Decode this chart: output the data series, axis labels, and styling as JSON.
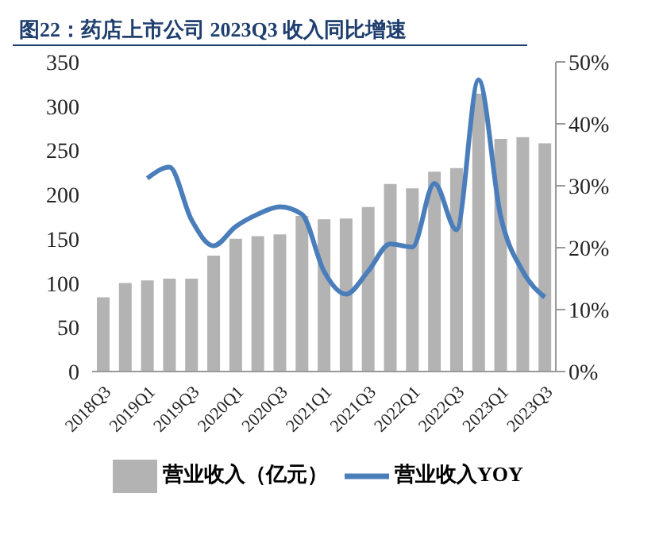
{
  "chart_data": {
    "type": "bar",
    "title": "图22：药店上市公司 2023Q3 收入同比增速",
    "categories": [
      "2018Q3",
      null,
      "2019Q1",
      null,
      "2019Q3",
      null,
      "2020Q1",
      null,
      "2020Q3",
      null,
      "2021Q1",
      null,
      "2021Q3",
      null,
      "2022Q1",
      null,
      "2022Q3",
      null,
      "2023Q1",
      null,
      "2023Q3"
    ],
    "series": [
      {
        "name": "营业收入（亿元）",
        "color": "#b3b3b3",
        "values": [
          84,
          100,
          103,
          105,
          105,
          131,
          150,
          153,
          155,
          176,
          172,
          173,
          186,
          212,
          207,
          226,
          230,
          314,
          263,
          265,
          258
        ]
      },
      {
        "name": "营业收入YOY",
        "type": "line",
        "axis": "y2",
        "color": "#4a7ebb",
        "values": [
          null,
          null,
          31.2,
          33,
          24.5,
          20.3,
          23.4,
          25.4,
          26.6,
          25.4,
          16.2,
          12.5,
          16.2,
          20.6,
          20.1,
          30.4,
          22.9,
          47.1,
          25.1,
          16.2,
          12
        ]
      }
    ],
    "ylim": [
      0,
      350
    ],
    "yticks": [
      0,
      50,
      100,
      150,
      200,
      250,
      300,
      350
    ],
    "y2lim": [
      0,
      50
    ],
    "y2ticks": [
      {
        "value": 0,
        "label": "0%"
      },
      {
        "value": 10,
        "label": "10%"
      },
      {
        "value": 20,
        "label": "20%"
      },
      {
        "value": 30,
        "label": "30%"
      },
      {
        "value": 40,
        "label": "40%"
      },
      {
        "value": 50,
        "label": "50%"
      }
    ],
    "legend": "bottom",
    "grid": false,
    "marker": "none"
  }
}
